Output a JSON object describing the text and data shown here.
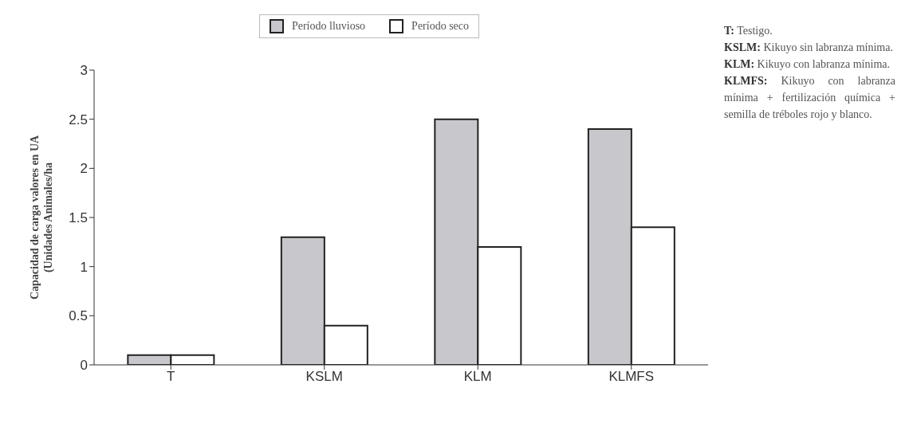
{
  "chart_data": {
    "type": "bar",
    "ylabel": "Capacidad de carga valores en UA\n(Unidades Animales/ha",
    "categories": [
      "T",
      "KSLM",
      "KLM",
      "KLMFS"
    ],
    "series": [
      {
        "name": "Período lluvioso",
        "color": "#c8c8cc",
        "values": [
          0.1,
          1.3,
          2.5,
          2.4
        ]
      },
      {
        "name": "Período seco",
        "color": "#ffffff",
        "values": [
          0.1,
          0.4,
          1.2,
          1.4
        ]
      }
    ],
    "ylim": [
      0,
      3
    ],
    "yticks": [
      0,
      0.5,
      1,
      1.5,
      2,
      2.5,
      3
    ],
    "grid": false,
    "legend": "top",
    "annotations": [
      "T: Testigo.",
      "KSLM: Kikuyo sin labranza mínima.",
      "KLM: Kikuyo con labranza mínima.",
      "KLMFS: Kikuyo con labranza mínima + fertilización química + semilla de tréboles rojo y blanco."
    ]
  }
}
